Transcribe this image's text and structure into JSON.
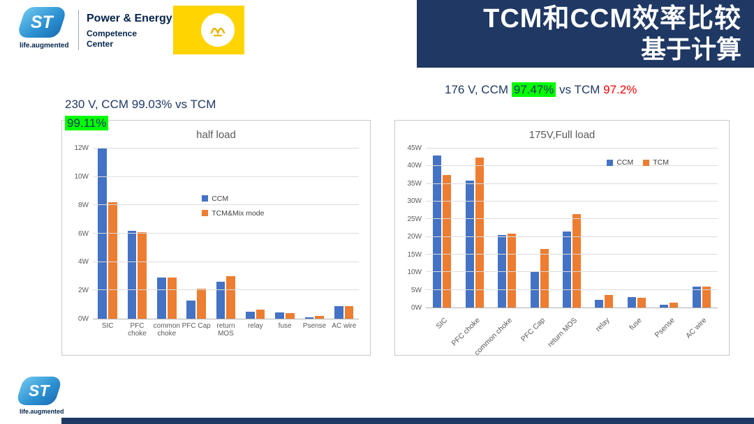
{
  "header": {
    "brand": {
      "logo_text": "ST",
      "tagline": "life.augmented",
      "dept_line1": "Power & Energy",
      "dept_line2": "Competence",
      "dept_line3": "Center"
    },
    "title_line1": "TCM和CCM效率比较",
    "title_line2": "基于计算"
  },
  "annotations": {
    "left_line1": "230 V, CCM 99.03% vs TCM",
    "left_highlight": "99.11%",
    "right_prefix": "176 V, CCM ",
    "right_highlight": "97.47%",
    "right_middle": " vs TCM ",
    "right_red": "97.2%"
  },
  "footer": {
    "logo_text": "ST",
    "tagline": "life.augmented"
  },
  "colors": {
    "ccm_blue": "#4472C4",
    "tcm_orange": "#ED7D31",
    "navy": "#1F3864",
    "highlight_green": "#00FF00",
    "alert_red": "#FF0000"
  },
  "chart_data": [
    {
      "type": "bar",
      "title": "half load",
      "categories": [
        "SIC",
        "PFC choke",
        "common choke",
        "PFC Cap",
        "return MOS",
        "relay",
        "fuse",
        "Psense",
        "AC wire"
      ],
      "series": [
        {
          "name": "CCM",
          "color": "#4472C4",
          "values": [
            12,
            6.2,
            2.9,
            1.3,
            2.6,
            0.5,
            0.45,
            0.1,
            0.9
          ]
        },
        {
          "name": "TCM&Mix mode",
          "color": "#ED7D31",
          "values": [
            8.2,
            6.1,
            2.9,
            2.1,
            3.0,
            0.65,
            0.4,
            0.2,
            0.9
          ]
        }
      ],
      "ylim": [
        0,
        12
      ],
      "ytick_step": 2,
      "yunit": "W",
      "grid": true,
      "legend_position": "middle",
      "rotate_labels": false
    },
    {
      "type": "bar",
      "title": "175V,Full load",
      "categories": [
        "SIC",
        "PFC choke",
        "common choke",
        "PFC Cap",
        "return MOS",
        "relay",
        "fuse",
        "Psense",
        "AC wire"
      ],
      "series": [
        {
          "name": "CCM",
          "color": "#4472C4",
          "values": [
            43,
            36,
            20.5,
            10,
            21.5,
            2.2,
            3,
            0.8,
            6
          ]
        },
        {
          "name": "TCM",
          "color": "#ED7D31",
          "values": [
            37.5,
            42.5,
            21,
            16.5,
            26.5,
            3.5,
            2.7,
            1.3,
            6
          ]
        }
      ],
      "ylim": [
        0,
        45
      ],
      "ytick_step": 5,
      "yunit": "W",
      "grid": true,
      "legend_position": "top-right",
      "rotate_labels": true
    }
  ]
}
